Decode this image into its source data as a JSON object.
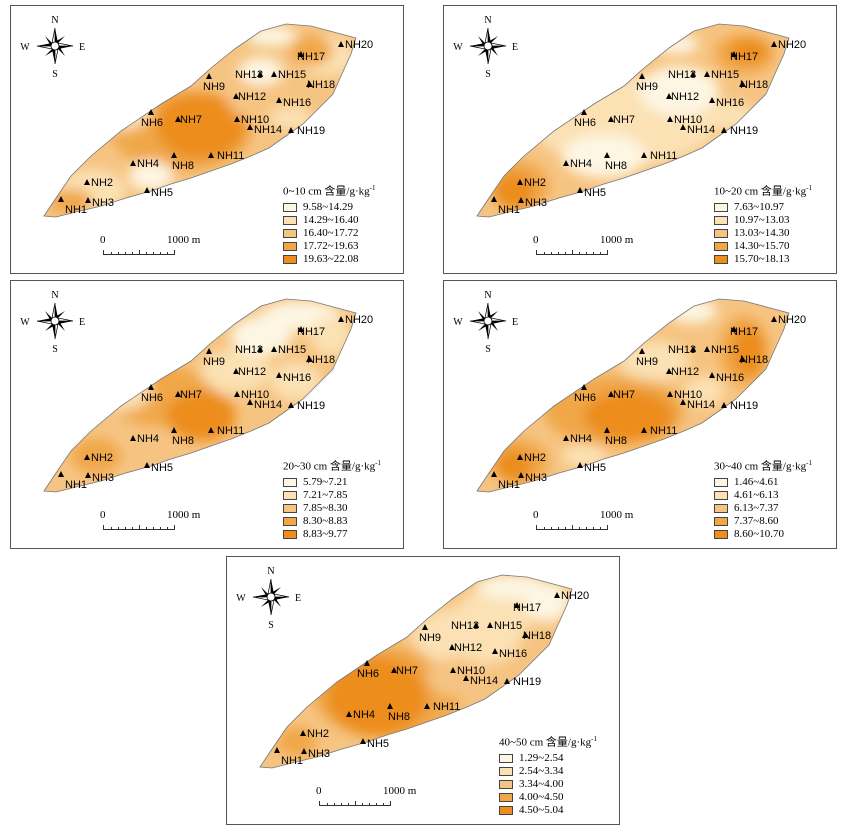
{
  "site_labels": [
    "NH1",
    "NH2",
    "NH3",
    "NH4",
    "NH5",
    "NH6",
    "NH7",
    "NH8",
    "NH9",
    "NH10",
    "NH11",
    "NH12",
    "NH13",
    "NH14",
    "NH15",
    "NH16",
    "NH17",
    "NH18",
    "NH19",
    "NH20"
  ],
  "compass": {
    "n": "N",
    "s": "S",
    "e": "E",
    "w": "W"
  },
  "scale_bar": {
    "start": "0",
    "end": "1000 m"
  },
  "legend_unit": "含量/g·kg",
  "legend_unit_sup": "-1",
  "color_classes": [
    "#fdf6e3",
    "#fbe1b4",
    "#f6c482",
    "#f0a748",
    "#ec8d1e"
  ],
  "panels": [
    {
      "depth": "0~10 cm",
      "ranges": [
        "9.58~14.29",
        "14.29~16.40",
        "16.40~17.72",
        "17.72~19.63",
        "19.63~22.08"
      ]
    },
    {
      "depth": "10~20 cm",
      "ranges": [
        "7.63~10.97",
        "10.97~13.03",
        "13.03~14.30",
        "14.30~15.70",
        "15.70~18.13"
      ]
    },
    {
      "depth": "20~30 cm",
      "ranges": [
        "5.79~7.21",
        "7.21~7.85",
        "7.85~8.30",
        "8.30~8.83",
        "8.83~9.77"
      ]
    },
    {
      "depth": "30~40 cm",
      "ranges": [
        "1.46~4.61",
        "4.61~6.13",
        "6.13~7.37",
        "7.37~8.60",
        "8.60~10.70"
      ]
    },
    {
      "depth": "40~50 cm",
      "ranges": [
        "1.29~2.54",
        "2.54~3.34",
        "3.34~4.00",
        "4.00~4.50",
        "4.50~5.04"
      ]
    }
  ]
}
